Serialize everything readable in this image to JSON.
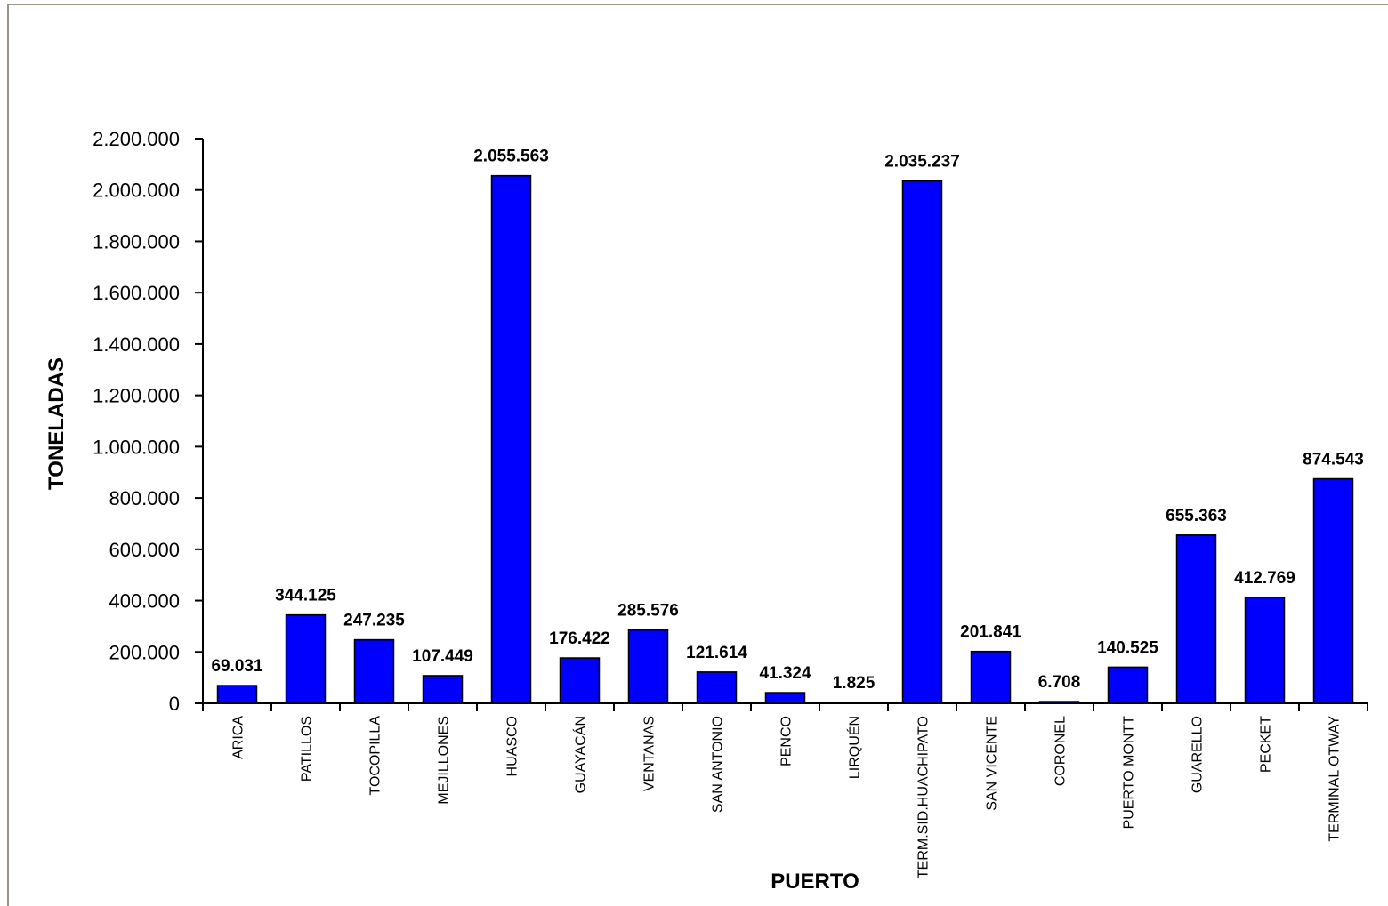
{
  "chart_data": {
    "type": "bar",
    "title": "",
    "xlabel": "PUERTO",
    "ylabel": "TONELADAS",
    "ylim": [
      0,
      2200000
    ],
    "ytick_step": 200000,
    "yticks": [
      "0",
      "200.000",
      "400.000",
      "600.000",
      "800.000",
      "1.000.000",
      "1.200.000",
      "1.400.000",
      "1.600.000",
      "1.800.000",
      "2.000.000",
      "2.200.000"
    ],
    "grid": false,
    "legend": "none",
    "bar_color": "#0000ff",
    "categories": [
      "ARICA",
      "PATILLOS",
      "TOCOPILLA",
      "MEJILLONES",
      "HUASCO",
      "GUAYACÁN",
      "VENTANAS",
      "SAN ANTONIO",
      "PENCO",
      "LIRQUÉN",
      "TERM.SID.HUACHIPATO",
      "SAN VICENTE",
      "CORONEL",
      "PUERTO MONTT",
      "GUARELLO",
      "PECKET",
      "TERMINAL OTWAY"
    ],
    "values": [
      69031,
      344125,
      247235,
      107449,
      2055563,
      176422,
      285576,
      121614,
      41324,
      1825,
      2035237,
      201841,
      6708,
      140525,
      655363,
      412769,
      874543
    ],
    "data_labels": [
      "69.031",
      "344.125",
      "247.235",
      "107.449",
      "2.055.563",
      "176.422",
      "285.576",
      "121.614",
      "41.324",
      "1.825",
      "2.035.237",
      "201.841",
      "6.708",
      "140.525",
      "655.363",
      "412.769",
      "874.543"
    ]
  }
}
